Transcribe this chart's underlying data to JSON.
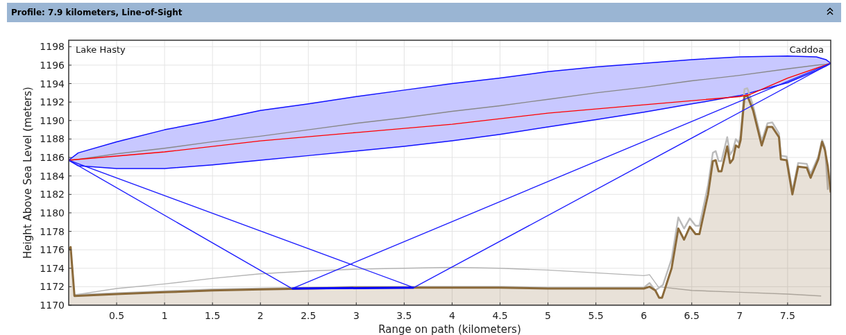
{
  "chart_data": {
    "type": "line",
    "title": "Profile: 7.9 kilometers, Line-of-Sight",
    "xlabel": "Range on path (kilometers)",
    "ylabel": "Height Above Sea Level (meters)",
    "annotations": [
      "Lake Hasty",
      "Caddoa"
    ],
    "xlim": [
      0,
      7.95
    ],
    "ylim": [
      1170,
      1198.7
    ],
    "xticks": [
      0.5,
      1,
      1.5,
      2,
      2.5,
      3,
      3.5,
      4,
      4.5,
      5,
      5.5,
      6,
      6.5,
      7,
      7.5
    ],
    "yticks": [
      1170,
      1172,
      1174,
      1176,
      1178,
      1180,
      1182,
      1184,
      1186,
      1188,
      1190,
      1192,
      1194,
      1196,
      1198
    ],
    "grid": true,
    "series": [
      {
        "color": "#b4b4b4",
        "x": [
          0.05,
          0.5,
          1,
          1.5,
          2,
          2.5,
          3,
          3.5,
          4,
          4.5,
          5,
          5.5,
          6,
          6.06,
          6.15,
          6.5,
          7,
          7.5,
          7.85
        ],
        "values": [
          1171.1,
          1171.8,
          1172.3,
          1172.9,
          1173.4,
          1173.7,
          1173.9,
          1174.0,
          1174.1,
          1174.0,
          1173.8,
          1173.5,
          1173.2,
          1173.3,
          1172.0,
          1171.6,
          1171.4,
          1171.2,
          1171.0
        ]
      },
      {
        "color": "#bcbcbc",
        "x": [
          0.05,
          0.5,
          1,
          1.5,
          2,
          2.5,
          3,
          3.5,
          4,
          4.5,
          5,
          5.5,
          6,
          6.06,
          6.12,
          6.2,
          6.29,
          6.36,
          6.42,
          6.48,
          6.54,
          6.58,
          6.67,
          6.72,
          6.75,
          6.78,
          6.81,
          6.87,
          6.9,
          6.93,
          6.96,
          6.99,
          7.01,
          7.05,
          7.08,
          7.14,
          7.23,
          7.29,
          7.34,
          7.41,
          7.43,
          7.49,
          7.55,
          7.61,
          7.7,
          7.74,
          7.82,
          7.86,
          7.89,
          7.92
        ],
        "values": [
          1171.1,
          1171.3,
          1171.5,
          1171.7,
          1171.8,
          1171.9,
          1172.0,
          1172.0,
          1172.0,
          1172.0,
          1171.9,
          1171.9,
          1171.9,
          1172.4,
          1171.6,
          1172.2,
          1175.0,
          1179.5,
          1178.3,
          1179.4,
          1178.6,
          1178.6,
          1183.0,
          1186.5,
          1186.7,
          1185.6,
          1185.6,
          1188.2,
          1186.3,
          1186.8,
          1188.0,
          1187.6,
          1188.4,
          1193.4,
          1193.5,
          1191.6,
          1187.8,
          1189.7,
          1189.8,
          1188.6,
          1186.2,
          1186.1,
          1182.4,
          1185.4,
          1185.3,
          1184.2,
          1186.1,
          1187.9,
          1187.1,
          1182.5
        ]
      },
      {
        "type": "area",
        "color": "#8b6a3a",
        "x": [
          0,
          0.02,
          0.06,
          0.5,
          1,
          1.5,
          2,
          2.5,
          3,
          3.5,
          4,
          4.5,
          5,
          5.5,
          6,
          6.06,
          6.12,
          6.16,
          6.19,
          6.29,
          6.36,
          6.42,
          6.48,
          6.54,
          6.58,
          6.67,
          6.72,
          6.75,
          6.78,
          6.81,
          6.87,
          6.9,
          6.93,
          6.96,
          6.99,
          7.01,
          7.05,
          7.08,
          7.14,
          7.23,
          7.29,
          7.34,
          7.41,
          7.43,
          7.49,
          7.55,
          7.61,
          7.7,
          7.74,
          7.82,
          7.86,
          7.89,
          7.92,
          7.95
        ],
        "values": [
          1176.0,
          1176.3,
          1171.0,
          1171.2,
          1171.4,
          1171.6,
          1171.7,
          1171.8,
          1171.9,
          1171.9,
          1171.9,
          1171.9,
          1171.8,
          1171.8,
          1171.8,
          1172.0,
          1171.6,
          1170.8,
          1170.8,
          1174.0,
          1178.3,
          1177.1,
          1178.5,
          1177.7,
          1177.7,
          1182.0,
          1185.6,
          1185.7,
          1184.5,
          1184.5,
          1187.2,
          1185.4,
          1185.8,
          1187.3,
          1187.1,
          1187.9,
          1192.6,
          1192.7,
          1191.1,
          1187.3,
          1189.3,
          1189.3,
          1188.2,
          1185.8,
          1185.7,
          1182.0,
          1185.0,
          1184.9,
          1183.8,
          1185.8,
          1187.7,
          1186.8,
          1185.0,
          1182.2
        ]
      },
      {
        "color": "#888888",
        "x": [
          0,
          0.1,
          0.5,
          1,
          1.5,
          2,
          2.5,
          3,
          3.5,
          4,
          4.5,
          5,
          5.5,
          6,
          6.5,
          7,
          7.5,
          7.8,
          7.9,
          7.95
        ],
        "values": [
          1185.7,
          1185.8,
          1186.4,
          1187.0,
          1187.7,
          1188.3,
          1189.0,
          1189.7,
          1190.3,
          1191.0,
          1191.6,
          1192.3,
          1193.0,
          1193.6,
          1194.3,
          1194.9,
          1195.6,
          1196.0,
          1196.1,
          1196.2
        ],
        "lower": [
          1185.7,
          1185.1,
          1184.8,
          1184.8,
          1185.2,
          1185.7,
          1186.2,
          1186.7,
          1187.2,
          1187.8,
          1188.5,
          1189.3,
          1190.1,
          1190.9,
          1191.8,
          1192.7,
          1194.1,
          1195.4,
          1195.9,
          1196.2
        ],
        "upper": [
          1185.7,
          1186.5,
          1187.7,
          1189.0,
          1190.0,
          1191.1,
          1191.8,
          1192.6,
          1193.3,
          1194.0,
          1194.6,
          1195.3,
          1195.8,
          1196.2,
          1196.6,
          1196.9,
          1197.0,
          1196.9,
          1196.6,
          1196.2
        ]
      },
      {
        "color": "#ff0000",
        "x": [
          0,
          1,
          2,
          3,
          4,
          5,
          6,
          7,
          7.1,
          7.5,
          7.95
        ],
        "values": [
          1185.7,
          1186.6,
          1187.8,
          1188.7,
          1189.6,
          1190.8,
          1191.7,
          1192.6,
          1192.8,
          1194.6,
          1196.2
        ]
      },
      {
        "color": "#2020ff",
        "x": [
          0,
          2.33,
          7.95
        ],
        "values": [
          1185.7,
          1171.8,
          1196.2
        ]
      },
      {
        "color": "#2020ff",
        "x": [
          0,
          3.6,
          7.95
        ],
        "values": [
          1185.7,
          1171.9,
          1196.2
        ]
      },
      {
        "color": "#0000ff",
        "x": [
          2.33,
          3.6
        ],
        "values": [
          1171.8,
          1171.9
        ]
      }
    ]
  }
}
